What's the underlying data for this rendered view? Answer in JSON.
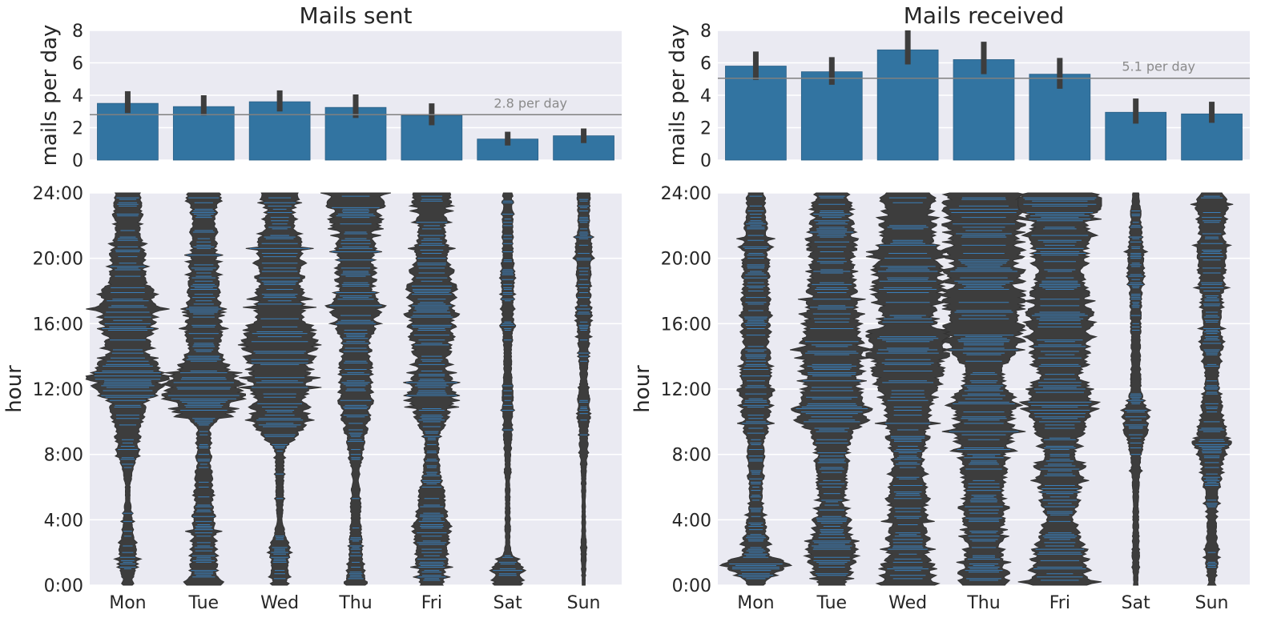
{
  "style": {
    "panel_bg": "#eaeaf2",
    "grid": "#ffffff",
    "bar_color": "#3274a1",
    "err_color": "#3d3d3d",
    "violin_fill": "#3d3d3d",
    "stick_color": "#3a86c8",
    "mean_line": "#808080"
  },
  "chart_data": [
    {
      "type": "bar",
      "title": "Mails sent",
      "ylabel": "mails per day",
      "categories": [
        "Mon",
        "Tue",
        "Wed",
        "Thu",
        "Fri",
        "Sat",
        "Sun"
      ],
      "values": [
        3.5,
        3.3,
        3.6,
        3.25,
        2.75,
        1.3,
        1.5
      ],
      "ci_low": [
        2.9,
        2.75,
        3.0,
        2.6,
        2.15,
        0.9,
        1.05
      ],
      "ci_high": [
        4.25,
        4.0,
        4.3,
        4.05,
        3.5,
        1.75,
        1.95
      ],
      "ylim": [
        0,
        8
      ],
      "yticks": [
        "0",
        "2",
        "4",
        "6",
        "8"
      ],
      "mean": 2.8,
      "mean_label": "2.8 per day",
      "grid": true
    },
    {
      "type": "bar",
      "title": "Mails received",
      "ylabel": "mails per day",
      "categories": [
        "Mon",
        "Tue",
        "Wed",
        "Thu",
        "Fri",
        "Sat",
        "Sun"
      ],
      "values": [
        5.8,
        5.45,
        6.8,
        6.2,
        5.3,
        2.95,
        2.85
      ],
      "ci_low": [
        4.95,
        4.65,
        5.9,
        5.3,
        4.4,
        2.25,
        2.3
      ],
      "ci_high": [
        6.7,
        6.35,
        8.0,
        7.3,
        6.3,
        3.8,
        3.6
      ],
      "ylim": [
        0,
        8
      ],
      "yticks": [
        "0",
        "2",
        "4",
        "6",
        "8"
      ],
      "mean": 5.05,
      "mean_label": "5.1 per day",
      "grid": true
    },
    {
      "type": "violin",
      "ylabel": "hour",
      "categories": [
        "Mon",
        "Tue",
        "Wed",
        "Thu",
        "Fri",
        "Sat",
        "Sun"
      ],
      "ylim": [
        0,
        24
      ],
      "yticks": [
        "0:00",
        "4:00",
        "8:00",
        "12:00",
        "16:00",
        "20:00",
        "24:00"
      ],
      "density_scale": 0.55,
      "seeds": [
        11,
        23,
        37,
        41,
        53,
        67,
        79
      ],
      "profiles": [
        [
          [
            0.2,
            0.12
          ],
          [
            1.0,
            0.18
          ],
          [
            1.6,
            0.2
          ],
          [
            5.7,
            0.05
          ],
          [
            9.5,
            0.3
          ],
          [
            11.0,
            0.4
          ],
          [
            12.3,
            0.85
          ],
          [
            14.5,
            0.45
          ],
          [
            16.8,
            0.7
          ],
          [
            19.0,
            0.4
          ],
          [
            22.0,
            0.3
          ],
          [
            23.6,
            0.3
          ]
        ],
        [
          [
            0.2,
            0.45
          ],
          [
            1.0,
            0.3
          ],
          [
            9.5,
            0.15
          ],
          [
            10.7,
            0.65
          ],
          [
            11.5,
            0.8
          ],
          [
            14.8,
            0.4
          ],
          [
            17.0,
            0.4
          ],
          [
            20.0,
            0.3
          ],
          [
            23.0,
            0.3
          ],
          [
            23.8,
            0.35
          ]
        ],
        [
          [
            0.3,
            0.2
          ],
          [
            2.0,
            0.25
          ],
          [
            4.0,
            0.07
          ],
          [
            8.0,
            0.1
          ],
          [
            10.0,
            0.6
          ],
          [
            12.0,
            0.65
          ],
          [
            15.5,
            0.8
          ],
          [
            16.5,
            0.6
          ],
          [
            18.5,
            0.5
          ],
          [
            20.0,
            0.55
          ],
          [
            22.5,
            0.3
          ],
          [
            23.8,
            0.45
          ]
        ],
        [
          [
            0.3,
            0.25
          ],
          [
            1.0,
            0.15
          ],
          [
            4.5,
            0.12
          ],
          [
            6.5,
            0.08
          ],
          [
            9.5,
            0.25
          ],
          [
            10.5,
            0.35
          ],
          [
            11.7,
            0.4
          ],
          [
            14.5,
            0.35
          ],
          [
            17.0,
            0.5
          ],
          [
            18.5,
            0.45
          ],
          [
            21.0,
            0.4
          ],
          [
            22.6,
            0.6
          ],
          [
            23.8,
            0.6
          ]
        ],
        [
          [
            0.4,
            0.3
          ],
          [
            2.3,
            0.45
          ],
          [
            8.5,
            0.15
          ],
          [
            11.8,
            0.5
          ],
          [
            13.5,
            0.35
          ],
          [
            16.0,
            0.55
          ],
          [
            18.2,
            0.55
          ],
          [
            20.5,
            0.35
          ],
          [
            22.0,
            0.3
          ],
          [
            23.8,
            0.45
          ]
        ],
        [
          [
            0.5,
            0.35
          ],
          [
            2.5,
            0.06
          ],
          [
            6.0,
            0.05
          ],
          [
            10.0,
            0.1
          ],
          [
            11.3,
            0.12
          ],
          [
            14.0,
            0.08
          ],
          [
            16.0,
            0.12
          ],
          [
            19.0,
            0.15
          ],
          [
            21.0,
            0.12
          ],
          [
            23.0,
            0.12
          ],
          [
            23.8,
            0.1
          ]
        ],
        [
          [
            0.3,
            0.03
          ],
          [
            1.7,
            0.06
          ],
          [
            5.0,
            0.04
          ],
          [
            9.5,
            0.1
          ],
          [
            10.2,
            0.15
          ],
          [
            13.0,
            0.08
          ],
          [
            16.0,
            0.15
          ],
          [
            18.5,
            0.15
          ],
          [
            20.0,
            0.2
          ],
          [
            22.5,
            0.12
          ],
          [
            23.6,
            0.15
          ]
        ]
      ]
    },
    {
      "type": "violin",
      "ylabel": "hour",
      "categories": [
        "Mon",
        "Tue",
        "Wed",
        "Thu",
        "Fri",
        "Sat",
        "Sun"
      ],
      "ylim": [
        0,
        24
      ],
      "yticks": [
        "0:00",
        "4:00",
        "8:00",
        "12:00",
        "16:00",
        "20:00",
        "24:00"
      ],
      "density_scale": 0.55,
      "seeds": [
        101,
        113,
        127,
        131,
        149,
        151,
        163
      ],
      "profiles": [
        [
          [
            0.2,
            0.2
          ],
          [
            1.2,
            0.8
          ],
          [
            2.0,
            0.3
          ],
          [
            5.0,
            0.15
          ],
          [
            8.5,
            0.2
          ],
          [
            10.0,
            0.3
          ],
          [
            12.5,
            0.35
          ],
          [
            15.0,
            0.3
          ],
          [
            16.5,
            0.35
          ],
          [
            18.0,
            0.3
          ],
          [
            21.0,
            0.3
          ],
          [
            23.8,
            0.2
          ]
        ],
        [
          [
            0.3,
            0.35
          ],
          [
            1.2,
            0.5
          ],
          [
            3.0,
            0.45
          ],
          [
            5.5,
            0.3
          ],
          [
            7.0,
            0.35
          ],
          [
            9.0,
            0.45
          ],
          [
            10.6,
            0.85
          ],
          [
            12.0,
            0.7
          ],
          [
            15.0,
            0.7
          ],
          [
            17.0,
            0.55
          ],
          [
            19.5,
            0.5
          ],
          [
            21.0,
            0.55
          ],
          [
            23.0,
            0.45
          ],
          [
            23.8,
            0.4
          ]
        ],
        [
          [
            0.2,
            0.7
          ],
          [
            2.0,
            0.45
          ],
          [
            5.0,
            0.45
          ],
          [
            7.5,
            0.35
          ],
          [
            10.5,
            0.55
          ],
          [
            13.0,
            0.75
          ],
          [
            15.0,
            0.9
          ],
          [
            16.5,
            0.6
          ],
          [
            18.5,
            0.8
          ],
          [
            21.5,
            0.6
          ],
          [
            23.0,
            0.55
          ],
          [
            23.8,
            0.6
          ]
        ],
        [
          [
            0.5,
            0.55
          ],
          [
            2.5,
            0.4
          ],
          [
            5.0,
            0.45
          ],
          [
            7.5,
            0.5
          ],
          [
            9.5,
            0.65
          ],
          [
            11.5,
            0.7
          ],
          [
            13.0,
            0.45
          ],
          [
            15.0,
            0.8
          ],
          [
            17.0,
            0.95
          ],
          [
            19.0,
            0.85
          ],
          [
            21.0,
            0.8
          ],
          [
            23.0,
            0.9
          ],
          [
            23.8,
            0.9
          ]
        ],
        [
          [
            0.5,
            0.7
          ],
          [
            2.5,
            0.55
          ],
          [
            4.0,
            0.35
          ],
          [
            6.5,
            0.5
          ],
          [
            8.5,
            0.4
          ],
          [
            11.0,
            0.8
          ],
          [
            13.0,
            0.55
          ],
          [
            15.0,
            0.75
          ],
          [
            17.0,
            0.7
          ],
          [
            19.0,
            0.55
          ],
          [
            22.0,
            0.7
          ],
          [
            23.5,
            0.9
          ],
          [
            23.8,
            0.85
          ]
        ],
        [
          [
            0.3,
            0.06
          ],
          [
            2.5,
            0.08
          ],
          [
            5.0,
            0.06
          ],
          [
            7.5,
            0.1
          ],
          [
            10.1,
            0.3
          ],
          [
            12.0,
            0.12
          ],
          [
            14.0,
            0.1
          ],
          [
            17.0,
            0.12
          ],
          [
            19.5,
            0.2
          ],
          [
            21.5,
            0.15
          ],
          [
            23.8,
            0.08
          ]
        ],
        [
          [
            0.5,
            0.08
          ],
          [
            1.2,
            0.15
          ],
          [
            4.0,
            0.1
          ],
          [
            6.5,
            0.2
          ],
          [
            8.7,
            0.4
          ],
          [
            10.5,
            0.25
          ],
          [
            12.5,
            0.15
          ],
          [
            14.5,
            0.25
          ],
          [
            16.5,
            0.2
          ],
          [
            19.0,
            0.3
          ],
          [
            21.0,
            0.3
          ],
          [
            23.0,
            0.35
          ],
          [
            23.8,
            0.3
          ]
        ]
      ]
    }
  ]
}
